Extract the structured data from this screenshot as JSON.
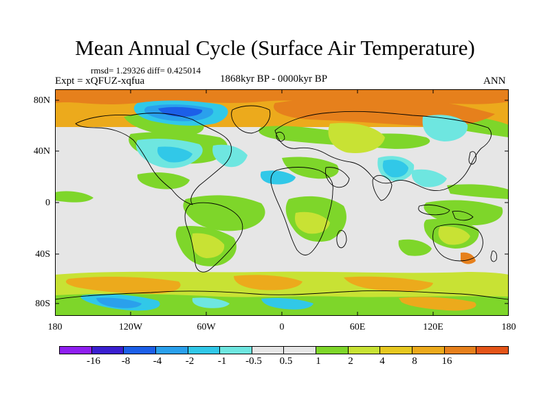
{
  "title": "Mean Annual Cycle (Surface Air Temperature)",
  "stats": "rmsd= 1.29326 diff= 0.425014",
  "experiment": "Expt = xQFUZ-xqfua",
  "period": "1868kyr BP - 0000kyr BP",
  "season": "ANN",
  "lat_ticks": [
    "80N",
    "40N",
    "0",
    "40S",
    "80S"
  ],
  "lon_ticks": [
    "180",
    "120W",
    "60W",
    "0",
    "60E",
    "120E",
    "180"
  ],
  "colorbar": {
    "colors": [
      "#8f1ff0",
      "#3a1fd0",
      "#1c5fe8",
      "#2aa0ec",
      "#31c8e8",
      "#6ee6e0",
      "#e6e6e6",
      "#e6e6e6",
      "#7ed62a",
      "#c8e234",
      "#e6c820",
      "#ecaa1c",
      "#e6801c",
      "#e45418"
    ],
    "labels": [
      "-16",
      "-8",
      "-4",
      "-2",
      "-1",
      "-0.5",
      "0.5",
      "1",
      "2",
      "4",
      "8",
      "16"
    ]
  },
  "field_colors": {
    "neutral": "#e6e6e6",
    "green": "#7ed62a",
    "yellow": "#c8e234",
    "orange": "#ecaa1c",
    "darkorange": "#e6801c",
    "cyan": "#31c8e8",
    "lightcyan": "#6ee6e0",
    "blue": "#2aa0ec",
    "darkblue": "#1c5fe8"
  }
}
